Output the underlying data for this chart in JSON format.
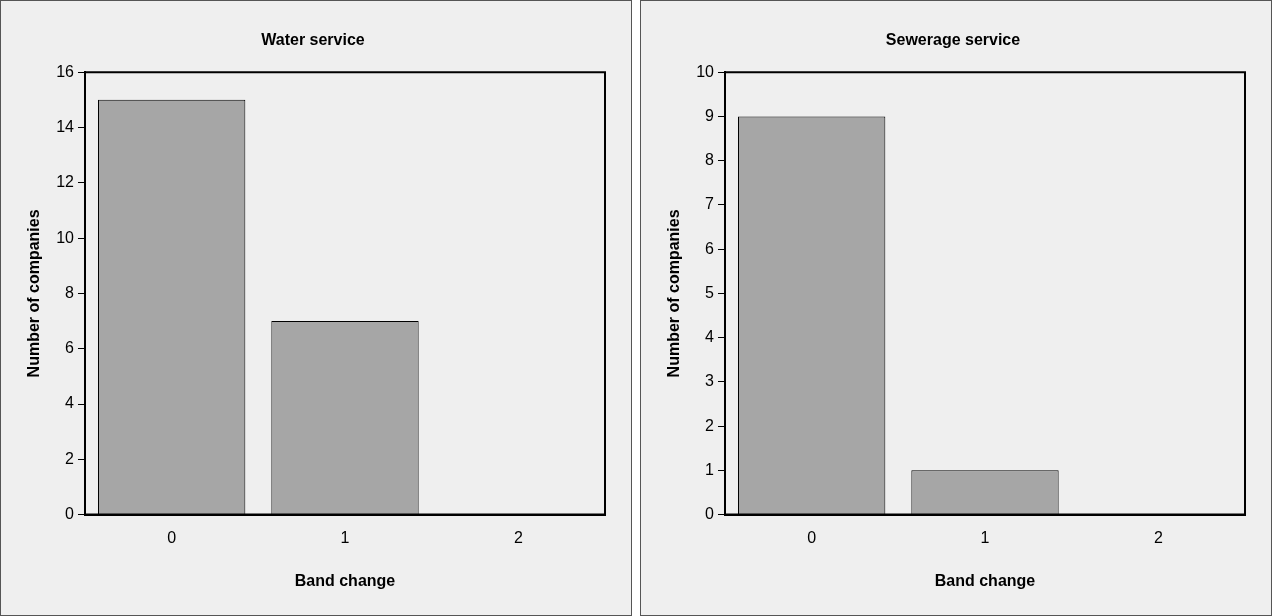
{
  "chart_data": [
    {
      "type": "bar",
      "title": "Water service",
      "xlabel": "Band change",
      "ylabel": "Number of companies",
      "categories": [
        "0",
        "1",
        "2"
      ],
      "values": [
        15,
        7,
        0
      ],
      "color": "#a6a6a6",
      "ylim": [
        0,
        16
      ],
      "yticks": [
        0,
        2,
        4,
        6,
        8,
        10,
        12,
        14,
        16
      ],
      "grid": false,
      "legend": false
    },
    {
      "type": "bar",
      "title": "Sewerage service",
      "xlabel": "Band change",
      "ylabel": "Number of companies",
      "categories": [
        "0",
        "1",
        "2"
      ],
      "values": [
        9,
        1,
        0
      ],
      "color": "#a6a6a6",
      "ylim": [
        0,
        10
      ],
      "yticks": [
        0,
        1,
        2,
        3,
        4,
        5,
        6,
        7,
        8,
        9,
        10
      ],
      "grid": false,
      "legend": false
    }
  ]
}
